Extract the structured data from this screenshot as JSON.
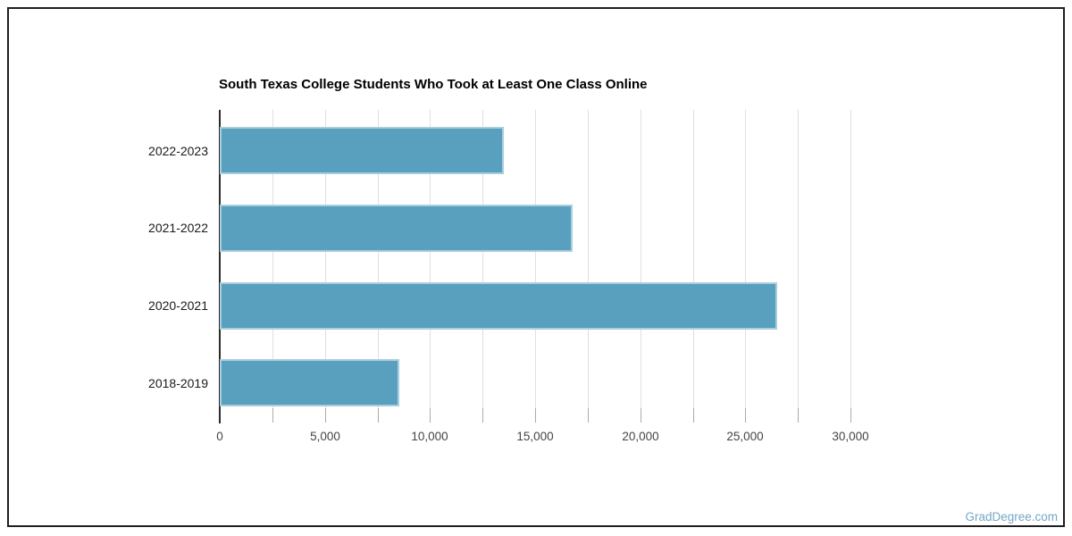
{
  "page": {
    "background": "#ffffff",
    "border_color": "#1f1f1f",
    "watermark": "GradDegree.com",
    "watermark_color": "#74a7c6"
  },
  "chart_data": {
    "type": "bar",
    "orientation": "horizontal",
    "title": "South Texas College Students Who Took at Least One Class Online",
    "categories": [
      "2022-2023",
      "2021-2022",
      "2020-2021",
      "2018-2019"
    ],
    "values": [
      13500,
      16800,
      26500,
      8550
    ],
    "xlabel": "",
    "ylabel": "",
    "xlim": [
      0,
      30000
    ],
    "x_major_ticks": [
      0,
      5000,
      10000,
      15000,
      20000,
      25000,
      30000
    ],
    "x_minor_tick_step": 2500,
    "grid": true,
    "legend": "none",
    "title_color": "#000000",
    "bar_color": "#58a0be",
    "bar_edge_color": "#a9cedd",
    "gridline_color": "#e0e0e0",
    "axis_line_color": "#2b2b2b",
    "tick_color": "#ababab",
    "x_tick_label_color": "#444444",
    "category_label_color": "#1a1a1a"
  }
}
